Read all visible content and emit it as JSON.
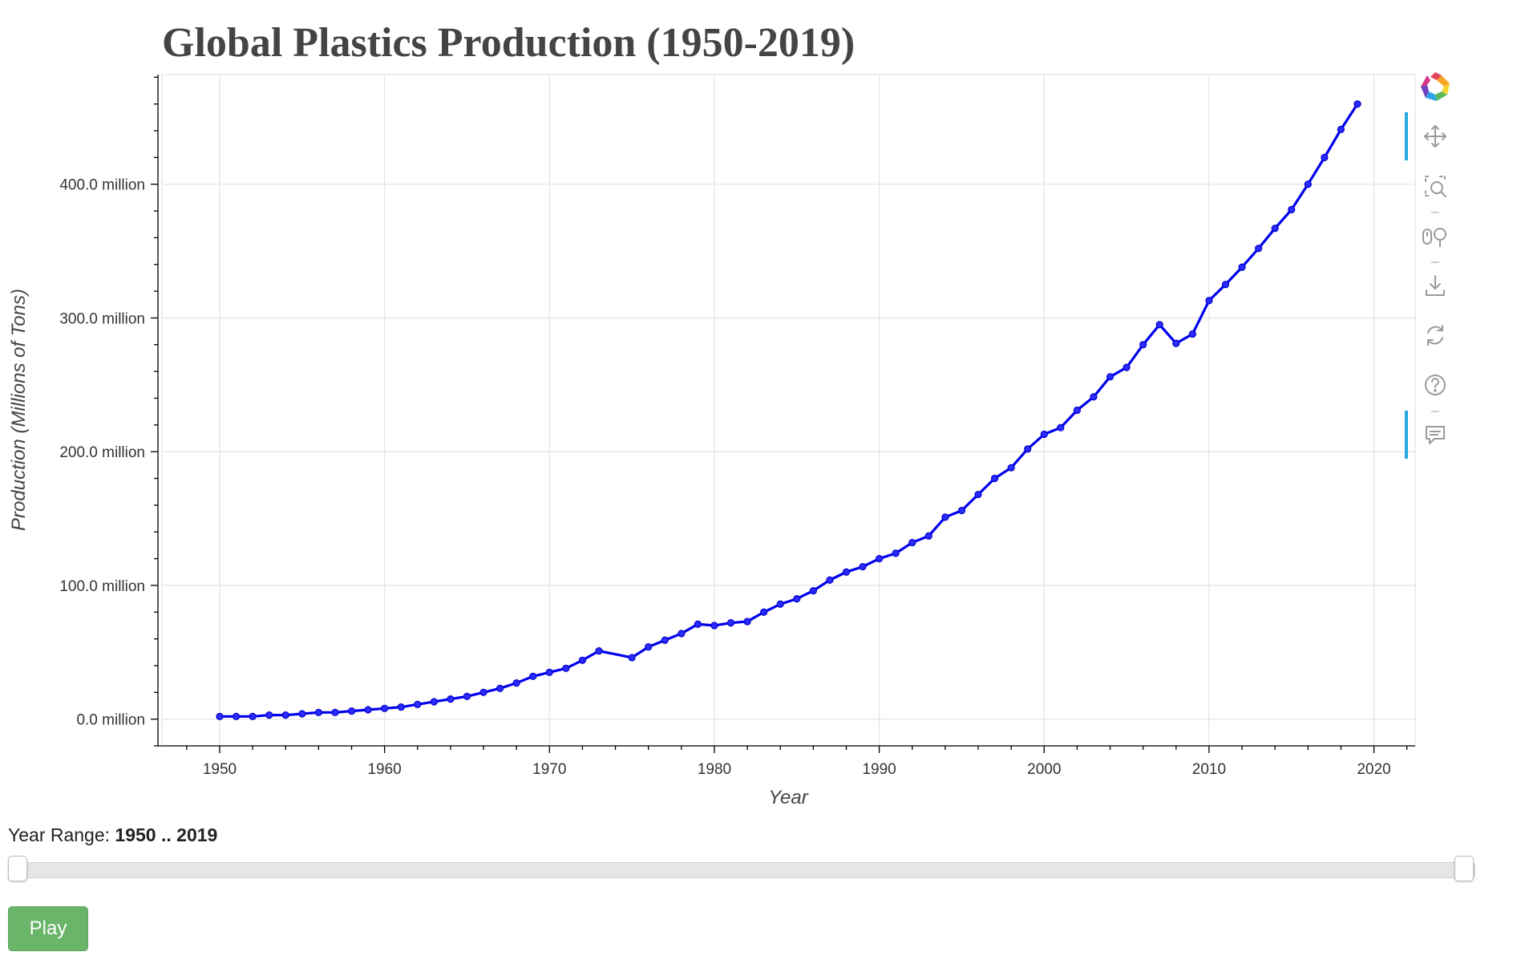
{
  "chart_data": {
    "type": "line",
    "title": "Global Plastics Production (1950-2019)",
    "xlabel": "Year",
    "ylabel": "Production (Millions of Tons)",
    "x": [
      1950,
      1951,
      1952,
      1953,
      1954,
      1955,
      1956,
      1957,
      1958,
      1959,
      1960,
      1961,
      1962,
      1963,
      1964,
      1965,
      1966,
      1967,
      1968,
      1969,
      1970,
      1971,
      1972,
      1973,
      1975,
      1976,
      1977,
      1978,
      1979,
      1980,
      1981,
      1982,
      1983,
      1984,
      1985,
      1986,
      1987,
      1988,
      1989,
      1990,
      1991,
      1992,
      1993,
      1994,
      1995,
      1996,
      1997,
      1998,
      1999,
      2000,
      2001,
      2002,
      2003,
      2004,
      2005,
      2006,
      2007,
      2008,
      2009,
      2010,
      2011,
      2012,
      2013,
      2014,
      2015,
      2016,
      2017,
      2018,
      2019
    ],
    "series": [
      {
        "values": [
          2000000,
          2000000,
          2000000,
          3000000,
          3000000,
          4000000,
          5000000,
          5000000,
          6000000,
          7000000,
          8000000,
          9000000,
          11000000,
          13000000,
          15000000,
          17000000,
          20000000,
          23000000,
          27000000,
          32000000,
          35000000,
          38000000,
          44000000,
          51000000,
          46000000,
          54000000,
          59000000,
          64000000,
          71000000,
          70000000,
          72000000,
          73000000,
          80000000,
          86000000,
          90000000,
          96000000,
          104000000,
          110000000,
          114000000,
          120000000,
          124000000,
          132000000,
          137000000,
          151000000,
          156000000,
          168000000,
          180000000,
          188000000,
          202000000,
          213000000,
          218000000,
          231000000,
          241000000,
          256000000,
          263000000,
          280000000,
          295000000,
          281000000,
          288000000,
          313000000,
          325000000,
          338000000,
          352000000,
          367000000,
          381000000,
          400000000,
          420000000,
          441000000,
          460000000
        ]
      }
    ],
    "xlim": [
      1946.5,
      2022.5
    ],
    "ylim": [
      -20000000,
      482000000
    ],
    "xticks": [
      1950,
      1960,
      1970,
      1980,
      1990,
      2000,
      2010,
      2020
    ],
    "xtick_labels": [
      "1950",
      "1960",
      "1970",
      "1980",
      "1990",
      "2000",
      "2010",
      "2020"
    ],
    "yticks": [
      0,
      100000000,
      200000000,
      300000000,
      400000000
    ],
    "ytick_labels": [
      "0.0 million",
      "100.0 million",
      "200.0 million",
      "300.0 million",
      "400.0 million"
    ],
    "grid": true,
    "line_color": "#0000ee"
  },
  "toolbar": {
    "tools": [
      "bokeh-logo-icon",
      "pan-icon",
      "box-zoom-icon",
      "wheel-zoom-icon",
      "save-icon",
      "reset-icon",
      "help-icon",
      "hover-icon"
    ]
  },
  "slider": {
    "title": "Year Range: ",
    "value": "1950 .. 2019",
    "start": 1950,
    "end": 2019,
    "range_start": 1950,
    "range_end": 2019
  },
  "play_button": {
    "label": "Play",
    "color": "#6bb56b"
  }
}
